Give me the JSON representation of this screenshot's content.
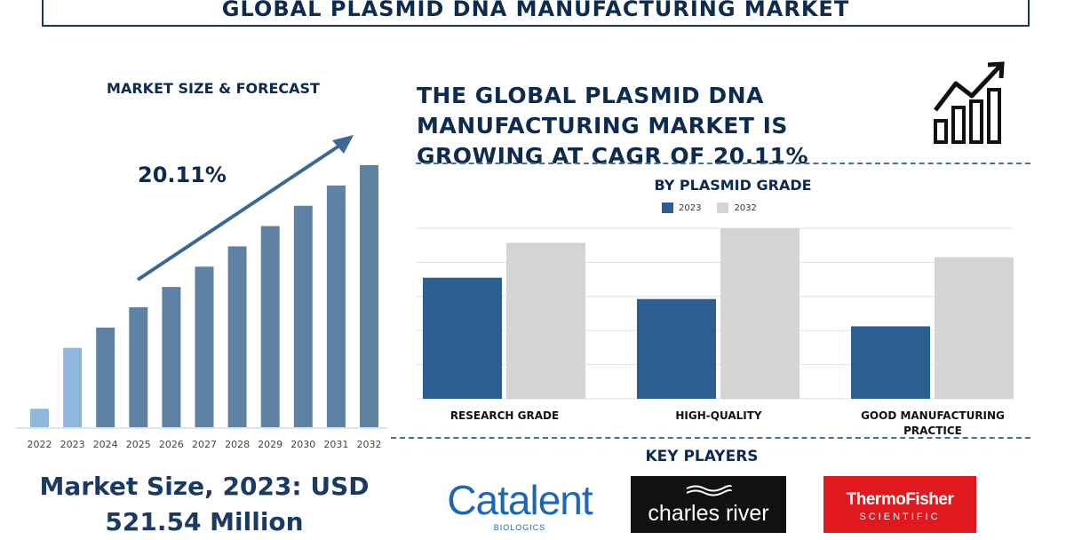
{
  "page": {
    "title": "GLOBAL PLASMID DNA MANUFACTURING MARKET",
    "forecast_title": "MARKET SIZE & FORECAST",
    "cagr_label": "20.11%",
    "headline": "THE GLOBAL PLASMID DNA MANUFACTURING MARKET IS GROWING AT CAGR OF 20.11%",
    "market_size_line1": "Market Size, 2023: USD",
    "market_size_line2": "521.54 Million",
    "grade_title": "BY PLASMID GRADE",
    "key_players_title": "KEY PLAYERS",
    "icon": "growth-bar-chart-icon"
  },
  "colors": {
    "navy": "#0d2a4f",
    "bar_forecast": "#5f81a4",
    "bar_highlight": "#8fb7db",
    "series_2023": "#2a5f8f",
    "series_2032": "#d4d4d4"
  },
  "key_players": [
    {
      "name": "Catalent",
      "sub": "BIOLOGICS"
    },
    {
      "name": "charles river",
      "sub": ""
    },
    {
      "name": "ThermoFisher",
      "sub": "SCIENTIFIC"
    }
  ],
  "chart_data": [
    {
      "type": "bar",
      "categories": [
        "2022",
        "2023",
        "2024",
        "2025",
        "2026",
        "2027",
        "2028",
        "2029",
        "2030",
        "2031",
        "2032"
      ],
      "values": [
        1.0,
        4.3,
        5.4,
        6.5,
        7.6,
        8.7,
        9.8,
        10.9,
        12.0,
        13.1,
        14.2
      ],
      "highlight": [
        "2022",
        "2023"
      ],
      "annotation": "20.11%",
      "title": "MARKET SIZE & FORECAST",
      "ylim": [
        0,
        14.5
      ]
    },
    {
      "type": "bar",
      "title": "BY PLASMID GRADE",
      "categories": [
        "RESEARCH GRADE",
        "HIGH-QUALITY",
        "GOOD MANUFACTURING PRACTICE"
      ],
      "series": [
        {
          "name": "2023",
          "values": [
            142,
            117,
            85
          ]
        },
        {
          "name": "2032",
          "values": [
            183,
            200,
            166
          ]
        }
      ],
      "ylim": [
        0,
        200
      ],
      "grid": true,
      "legend": "top-center"
    }
  ]
}
